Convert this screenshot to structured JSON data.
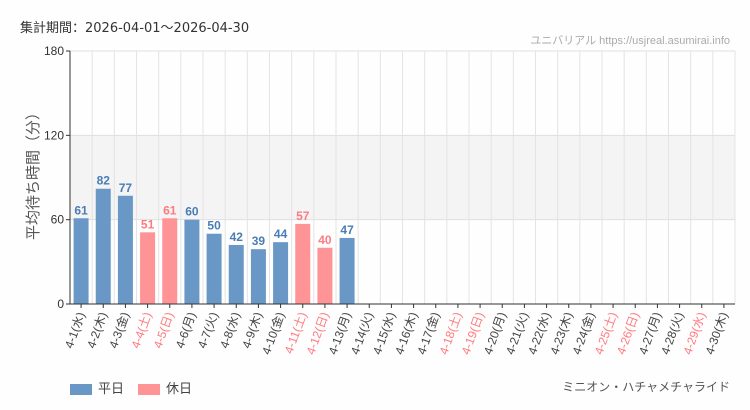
{
  "header": {
    "period": "集計期間：2026-04-01〜2026-04-30",
    "site": "ユニバリアル https://usjreal.asumirai.info"
  },
  "legend": {
    "weekday": "平日",
    "holiday": "休日"
  },
  "attraction": "ミニオン・ハチャメチャライド",
  "colors": {
    "weekday": "#6a98c6",
    "holiday": "#ff9497",
    "weekday_text": "#4a7db5",
    "holiday_text": "#ff7a80",
    "band": "#f3f4f3"
  },
  "chart_data": {
    "type": "bar",
    "title": "",
    "xlabel": "",
    "ylabel": "平均待ち時間（分）",
    "ylim": [
      0,
      180
    ],
    "yticks": [
      0,
      60,
      120,
      180
    ],
    "shaded_band": [
      60,
      120
    ],
    "categories": [
      "4-1(水)",
      "4-2(木)",
      "4-3(金)",
      "4-4(土)",
      "4-5(日)",
      "4-6(月)",
      "4-7(火)",
      "4-8(水)",
      "4-9(木)",
      "4-10(金)",
      "4-11(土)",
      "4-12(日)",
      "4-13(月)",
      "4-14(火)",
      "4-15(水)",
      "4-16(木)",
      "4-17(金)",
      "4-18(土)",
      "4-19(日)",
      "4-20(月)",
      "4-21(火)",
      "4-22(水)",
      "4-23(木)",
      "4-24(金)",
      "4-25(土)",
      "4-26(日)",
      "4-27(月)",
      "4-28(火)",
      "4-29(水)",
      "4-30(木)"
    ],
    "holiday": [
      false,
      false,
      false,
      true,
      true,
      false,
      false,
      false,
      false,
      false,
      true,
      true,
      false,
      false,
      false,
      false,
      false,
      true,
      true,
      false,
      false,
      false,
      false,
      false,
      true,
      true,
      false,
      false,
      true,
      false
    ],
    "values": [
      61,
      82,
      77,
      51,
      61,
      60,
      50,
      42,
      39,
      44,
      57,
      40,
      47,
      null,
      null,
      null,
      null,
      null,
      null,
      null,
      null,
      null,
      null,
      null,
      null,
      null,
      null,
      null,
      null,
      null
    ]
  }
}
